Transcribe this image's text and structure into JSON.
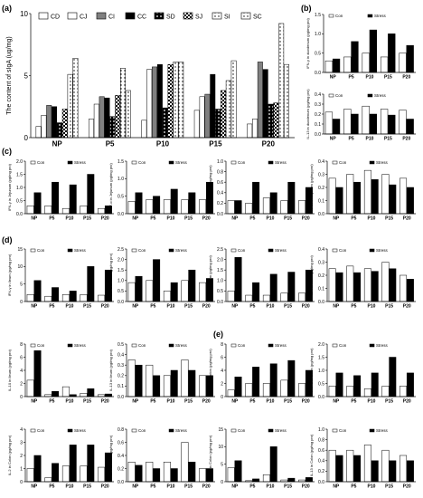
{
  "panel_letters": [
    "(a)",
    "(b)",
    "(c)",
    "(d)",
    "(e)"
  ],
  "colors": {
    "open_bar": "#ffffff",
    "filled_bar": "#000000",
    "gray_bar": "#808080",
    "axis": "#000000"
  },
  "chart_data": [
    {
      "panel": "(a)",
      "type": "bar",
      "ylabel": "The content of sIgA (ug/mg)",
      "ylim": [
        0,
        10
      ],
      "yticks": [
        "0",
        "5",
        "10"
      ],
      "categories": [
        "NP",
        "P5",
        "P10",
        "P15",
        "P20"
      ],
      "legend": [
        "CD",
        "CJ",
        "CI",
        "CC",
        "SD",
        "SJ",
        "SI",
        "SC"
      ],
      "series": [
        {
          "name": "CD",
          "values": [
            0.9,
            1.5,
            1.4,
            2.2,
            1.1
          ]
        },
        {
          "name": "CJ",
          "values": [
            1.8,
            2.7,
            5.5,
            3.3,
            1.5
          ]
        },
        {
          "name": "CI",
          "values": [
            2.6,
            3.3,
            5.7,
            3.5,
            6.1
          ]
        },
        {
          "name": "CC",
          "values": [
            2.5,
            3.2,
            5.9,
            5.1,
            5.5
          ]
        },
        {
          "name": "SD",
          "values": [
            1.2,
            1.7,
            2.4,
            2.3,
            2.7
          ]
        },
        {
          "name": "SJ",
          "values": [
            2.3,
            3.4,
            5.9,
            3.8,
            2.8
          ]
        },
        {
          "name": "SI",
          "values": [
            5.1,
            5.6,
            6.1,
            4.6,
            9.2
          ]
        },
        {
          "name": "SC",
          "values": [
            6.4,
            3.8,
            6.1,
            6.2,
            5.9
          ]
        }
      ]
    },
    {
      "panel": "(b)",
      "type": "bar",
      "ylabel": "IFN-γ in duodenum (pg/mg pro)",
      "ylim": [
        0,
        1.5
      ],
      "yticks": [
        "0.0",
        "0.5",
        "1.0",
        "1.5"
      ],
      "categories": [
        "NP",
        "P5",
        "P10",
        "P15",
        "P20"
      ],
      "legend": [
        "Con",
        "Stress"
      ],
      "series": [
        {
          "name": "Con",
          "values": [
            0.3,
            0.4,
            0.5,
            0.4,
            0.5
          ]
        },
        {
          "name": "Stress",
          "values": [
            0.35,
            0.8,
            1.1,
            1.0,
            0.7
          ]
        }
      ]
    },
    {
      "panel": "(b)",
      "type": "bar",
      "ylabel": "IL-13 in duodenum (pg/mg pro)",
      "ylim": [
        0,
        0.4
      ],
      "yticks": [
        "0.0",
        "0.1",
        "0.2",
        "0.3",
        "0.4"
      ],
      "categories": [
        "NP",
        "P5",
        "P10",
        "P15",
        "P20"
      ],
      "legend": [
        "Con",
        "Stress"
      ],
      "series": [
        {
          "name": "Con",
          "values": [
            0.22,
            0.25,
            0.28,
            0.25,
            0.24
          ]
        },
        {
          "name": "Stress",
          "values": [
            0.15,
            0.2,
            0.2,
            0.19,
            0.15
          ]
        }
      ]
    },
    {
      "panel": "(c)",
      "type": "bar",
      "ylabel": "IFN-γ in Jejunum (pg/mg pro)",
      "ylim": [
        0,
        2.0
      ],
      "yticks": [
        "0.0",
        "0.5",
        "1.0",
        "1.5",
        "2.0"
      ],
      "categories": [
        "NP",
        "P5",
        "P10",
        "P15",
        "P20"
      ],
      "legend": [
        "Con",
        "Stress"
      ],
      "series": [
        {
          "name": "Con",
          "values": [
            0.3,
            0.3,
            0.2,
            0.3,
            0.2
          ]
        },
        {
          "name": "Stress",
          "values": [
            0.8,
            1.2,
            1.1,
            1.5,
            0.3
          ]
        }
      ]
    },
    {
      "panel": "(c)",
      "type": "bar",
      "ylabel": "TNF-α in Jejunum (pg/mg pro)",
      "ylim": [
        0,
        1.5
      ],
      "yticks": [
        "0.0",
        "0.5",
        "1.0",
        "1.5"
      ],
      "categories": [
        "NP",
        "P5",
        "P10",
        "P15",
        "P20"
      ],
      "legend": [
        "Con",
        "Stress"
      ],
      "series": [
        {
          "name": "Con",
          "values": [
            0.35,
            0.4,
            0.4,
            0.4,
            0.4
          ]
        },
        {
          "name": "Stress",
          "values": [
            0.6,
            0.5,
            0.7,
            0.6,
            0.9
          ]
        }
      ]
    },
    {
      "panel": "(c)",
      "type": "bar",
      "ylabel": "IL-2 in Jejunum (pg/mg pro)",
      "ylim": [
        0,
        1.0
      ],
      "yticks": [
        "0.0",
        "0.2",
        "0.4",
        "0.6",
        "0.8",
        "1.0"
      ],
      "categories": [
        "NP",
        "P5",
        "P10",
        "P15",
        "P20"
      ],
      "legend": [
        "Con",
        "Stress"
      ],
      "series": [
        {
          "name": "Con",
          "values": [
            0.25,
            0.2,
            0.3,
            0.25,
            0.25
          ]
        },
        {
          "name": "Stress",
          "values": [
            0.25,
            0.6,
            0.4,
            0.6,
            0.5
          ]
        }
      ]
    },
    {
      "panel": "(c)",
      "type": "bar",
      "ylabel": "IL-13 in Jejunum (pg/mg pro)",
      "ylim": [
        0,
        0.4
      ],
      "yticks": [
        "0.0",
        "0.1",
        "0.2",
        "0.3",
        "0.4"
      ],
      "categories": [
        "NP",
        "P5",
        "P10",
        "P15",
        "P20"
      ],
      "legend": [
        "Con",
        "Stress"
      ],
      "series": [
        {
          "name": "Con",
          "values": [
            0.27,
            0.3,
            0.33,
            0.3,
            0.27
          ]
        },
        {
          "name": "Stress",
          "values": [
            0.2,
            0.24,
            0.26,
            0.22,
            0.2
          ]
        }
      ]
    },
    {
      "panel": "(d)",
      "type": "bar",
      "ylabel": "IFN-γ in Ileum (pg/mg pro)",
      "ylim": [
        0,
        15
      ],
      "yticks": [
        "0",
        "5",
        "10",
        "15"
      ],
      "categories": [
        "NP",
        "P5",
        "P10",
        "P15",
        "P20"
      ],
      "legend": [
        "Con",
        "Stress"
      ],
      "series": [
        {
          "name": "Con",
          "values": [
            2,
            1.5,
            2,
            2,
            1.8
          ]
        },
        {
          "name": "Stress",
          "values": [
            6,
            4,
            3,
            10,
            9
          ]
        }
      ]
    },
    {
      "panel": "(d)",
      "type": "bar",
      "ylabel": "TNF-α in Ileum (pg/mg pro)",
      "ylim": [
        0,
        2.5
      ],
      "yticks": [
        "0.0",
        "0.5",
        "1.0",
        "1.5",
        "2.0",
        "2.5"
      ],
      "categories": [
        "NP",
        "P5",
        "P10",
        "P15",
        "P20"
      ],
      "legend": [
        "Con",
        "Stress"
      ],
      "series": [
        {
          "name": "Con",
          "values": [
            0.9,
            1.0,
            0.5,
            1.0,
            0.9
          ]
        },
        {
          "name": "Stress",
          "values": [
            1.2,
            2.0,
            0.9,
            1.5,
            1.1
          ]
        }
      ]
    },
    {
      "panel": "(d)",
      "type": "bar",
      "ylabel": "IL-2 in Ileum (pg/mg pro)",
      "ylim": [
        0,
        2.5
      ],
      "yticks": [
        "0.0",
        "0.5",
        "1.0",
        "1.5",
        "2.0",
        "2.5"
      ],
      "categories": [
        "NP",
        "P5",
        "P10",
        "P15",
        "P20"
      ],
      "legend": [
        "Con",
        "Stress"
      ],
      "series": [
        {
          "name": "Con",
          "values": [
            0.5,
            0.3,
            0.3,
            0.4,
            0.4
          ]
        },
        {
          "name": "Stress",
          "values": [
            2.1,
            0.9,
            1.3,
            1.4,
            1.5
          ]
        }
      ]
    },
    {
      "panel": "(d)",
      "type": "bar",
      "ylabel": "IL-4 in Ileum (pg/mg pro)",
      "ylim": [
        0,
        0.4
      ],
      "yticks": [
        "0.0",
        "0.1",
        "0.2",
        "0.3",
        "0.4"
      ],
      "categories": [
        "NP",
        "P5",
        "P10",
        "P15",
        "P20"
      ],
      "legend": [
        "Con",
        "Stress"
      ],
      "series": [
        {
          "name": "Con",
          "values": [
            0.25,
            0.27,
            0.25,
            0.3,
            0.2
          ]
        },
        {
          "name": "Stress",
          "values": [
            0.22,
            0.22,
            0.23,
            0.25,
            0.17
          ]
        }
      ]
    },
    {
      "panel": "(d)",
      "type": "bar",
      "ylabel": "IL-10 in Ileum (pg/mg pro)",
      "ylim": [
        0,
        8
      ],
      "yticks": [
        "0",
        "2",
        "4",
        "6",
        "8"
      ],
      "categories": [
        "NP",
        "P5",
        "P10",
        "P15",
        "P20"
      ],
      "legend": [
        "Con",
        "Stress"
      ],
      "series": [
        {
          "name": "Con",
          "values": [
            2.5,
            0.3,
            1.5,
            0.5,
            0.3
          ]
        },
        {
          "name": "Stress",
          "values": [
            7,
            0.8,
            0.3,
            1.2,
            0.4
          ]
        }
      ]
    },
    {
      "panel": "(d)",
      "type": "bar",
      "ylabel": "IL-13 in Ileum (pg/mg pro)",
      "ylim": [
        0,
        0.5
      ],
      "yticks": [
        "0.0",
        "0.1",
        "0.2",
        "0.3",
        "0.4",
        "0.5"
      ],
      "categories": [
        "NP",
        "P5",
        "P10",
        "P15",
        "P20"
      ],
      "legend": [
        "Con",
        "Stress"
      ],
      "series": [
        {
          "name": "Con",
          "values": [
            0.35,
            0.3,
            0.2,
            0.35,
            0.2
          ]
        },
        {
          "name": "Stress",
          "values": [
            0.3,
            0.2,
            0.25,
            0.25,
            0.2
          ]
        }
      ]
    },
    {
      "panel": "(e)",
      "type": "bar",
      "ylabel": "IFN-γ in Colon (pg/mg pro)",
      "ylim": [
        0,
        8
      ],
      "yticks": [
        "0",
        "2",
        "4",
        "6",
        "8"
      ],
      "categories": [
        "NP",
        "P5",
        "P10",
        "P15",
        "P20"
      ],
      "legend": [
        "Con",
        "Stress"
      ],
      "series": [
        {
          "name": "Con",
          "values": [
            1,
            2,
            2,
            2.5,
            2
          ]
        },
        {
          "name": "Stress",
          "values": [
            3,
            4.5,
            5,
            5.5,
            4
          ]
        }
      ]
    },
    {
      "panel": "(e)",
      "type": "bar",
      "ylabel": "TNF-α in Colon (pg/mg pro)",
      "ylim": [
        0,
        2.0
      ],
      "yticks": [
        "0.0",
        "0.5",
        "1.0",
        "1.5",
        "2.0"
      ],
      "categories": [
        "NP",
        "P5",
        "P10",
        "P15",
        "P20"
      ],
      "legend": [
        "Con",
        "Stress"
      ],
      "series": [
        {
          "name": "Con",
          "values": [
            0.4,
            0.4,
            0.3,
            0.4,
            0.4
          ]
        },
        {
          "name": "Stress",
          "values": [
            0.9,
            0.8,
            0.9,
            1.5,
            0.9
          ]
        }
      ]
    },
    {
      "panel": "(e)",
      "type": "bar",
      "ylabel": "IL-2 in Colon (pg/mg pro)",
      "ylim": [
        0,
        4
      ],
      "yticks": [
        "0",
        "1",
        "2",
        "3",
        "4"
      ],
      "categories": [
        "NP",
        "P5",
        "P10",
        "P15",
        "P20"
      ],
      "legend": [
        "Con",
        "Stress"
      ],
      "series": [
        {
          "name": "Con",
          "values": [
            1,
            0.3,
            1.2,
            1.2,
            1.1
          ]
        },
        {
          "name": "Stress",
          "values": [
            2,
            1.4,
            2.8,
            2.8,
            2.2
          ]
        }
      ]
    },
    {
      "panel": "(e)",
      "type": "bar",
      "ylabel": "IL-4 in Colon (pg/mg pro)",
      "ylim": [
        0,
        0.8
      ],
      "yticks": [
        "0.0",
        "0.2",
        "0.4",
        "0.6",
        "0.8"
      ],
      "categories": [
        "NP",
        "P5",
        "P10",
        "P15",
        "P20"
      ],
      "legend": [
        "Con",
        "Stress"
      ],
      "series": [
        {
          "name": "Con",
          "values": [
            0.3,
            0.3,
            0.3,
            0.6,
            0.2
          ]
        },
        {
          "name": "Stress",
          "values": [
            0.25,
            0.2,
            0.2,
            0.3,
            0.2
          ]
        }
      ]
    },
    {
      "panel": "(e)",
      "type": "bar",
      "ylabel": "IL-6 in Colon (pg/mg pro)",
      "ylim": [
        0,
        15
      ],
      "yticks": [
        "0",
        "5",
        "10",
        "15"
      ],
      "categories": [
        "NP",
        "P5",
        "P10",
        "P15",
        "P20"
      ],
      "legend": [
        "Con",
        "Stress"
      ],
      "series": [
        {
          "name": "Con",
          "values": [
            4,
            0.3,
            2,
            0.5,
            0.5
          ]
        },
        {
          "name": "Stress",
          "values": [
            6,
            0.8,
            10,
            1,
            1.2
          ]
        }
      ]
    },
    {
      "panel": "(e)",
      "type": "bar",
      "ylabel": "IL-13 in Colon (pg/mg pro)",
      "ylim": [
        0,
        1.0
      ],
      "yticks": [
        "0.0",
        "0.2",
        "0.4",
        "0.6",
        "0.8",
        "1.0"
      ],
      "categories": [
        "NP",
        "P5",
        "P10",
        "P15",
        "P20"
      ],
      "legend": [
        "Con",
        "Stress"
      ],
      "series": [
        {
          "name": "Con",
          "values": [
            0.6,
            0.6,
            0.7,
            0.6,
            0.5
          ]
        },
        {
          "name": "Stress",
          "values": [
            0.5,
            0.5,
            0.4,
            0.4,
            0.4
          ]
        }
      ]
    }
  ]
}
